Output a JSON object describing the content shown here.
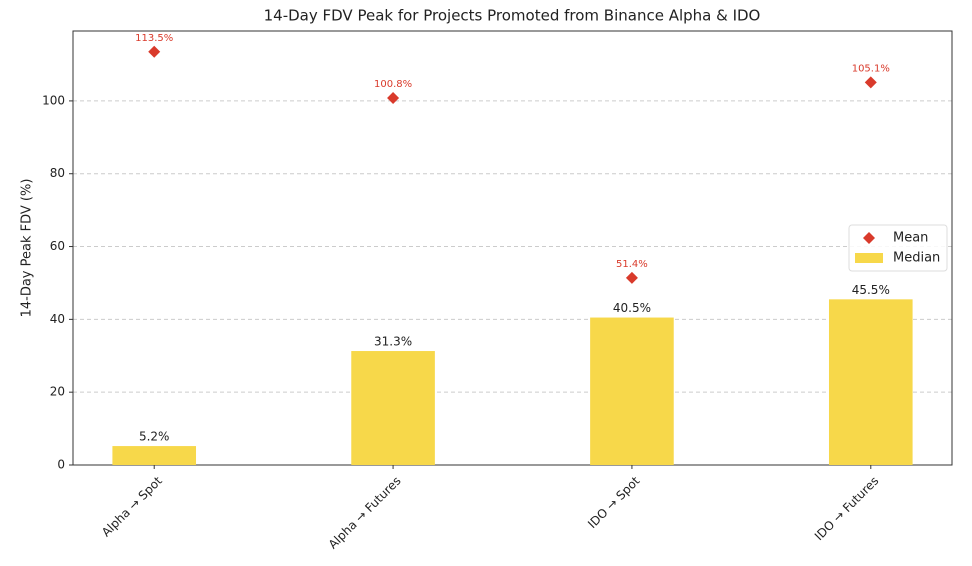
{
  "chart_data": {
    "type": "bar",
    "title": "14-Day FDV Peak for Projects Promoted from Binance Alpha & IDO",
    "y_label": "14-Day Peak FDV (%)",
    "categories": [
      "Alpha → Spot",
      "Alpha → Futures",
      "IDO → Spot",
      "IDO → Futures"
    ],
    "series": [
      {
        "name": "Mean",
        "type": "scatter",
        "color": "#d93a2b",
        "values": [
          113.5,
          100.8,
          51.4,
          105.1
        ],
        "value_labels": [
          "113.5%",
          "100.8%",
          "51.4%",
          "105.1%"
        ]
      },
      {
        "name": "Median",
        "type": "bar",
        "color": "#f7d84a",
        "values": [
          5.2,
          31.3,
          40.5,
          45.5
        ],
        "value_labels": [
          "5.2%",
          "31.3%",
          "40.5%",
          "45.5%"
        ]
      }
    ],
    "ylim": [
      0,
      119.2
    ],
    "yticks": [
      0,
      20,
      40,
      60,
      80,
      100
    ],
    "grid": true,
    "legend": "right"
  }
}
